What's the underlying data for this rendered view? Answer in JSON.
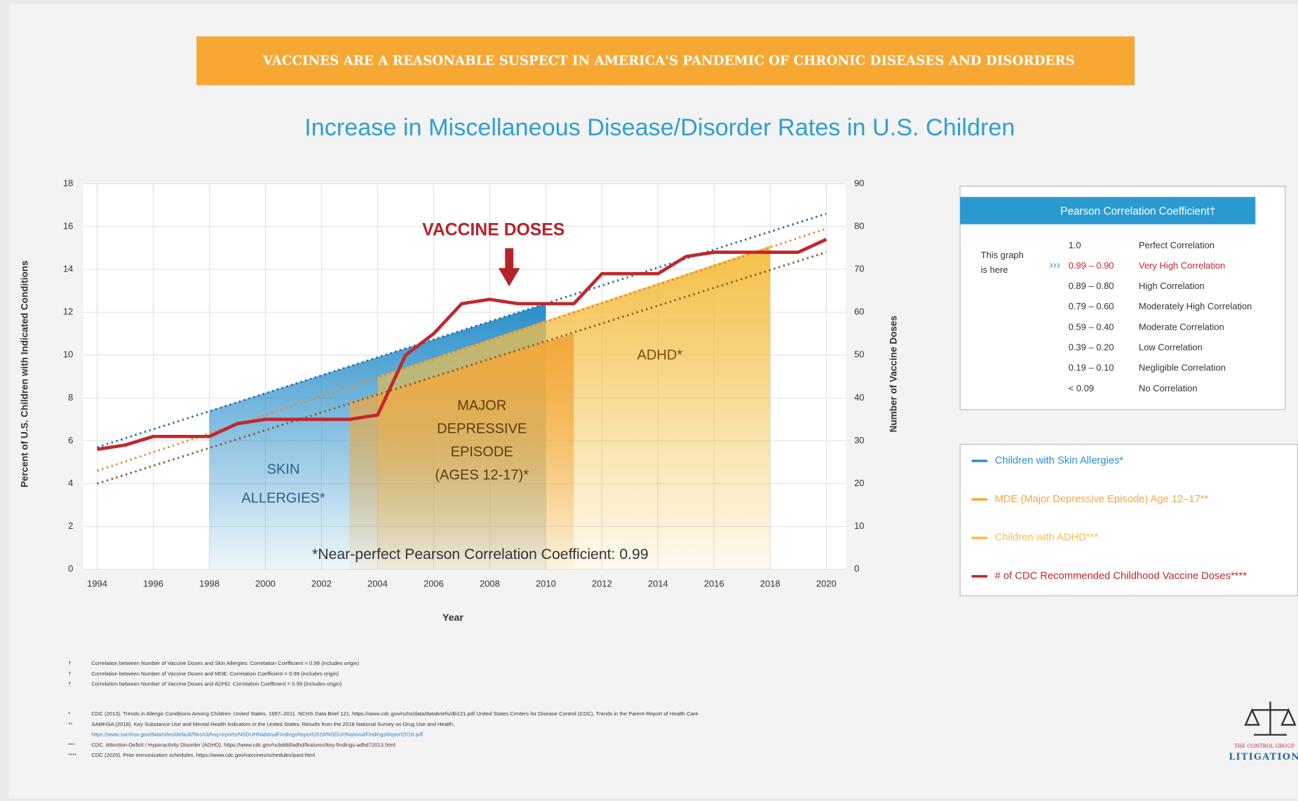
{
  "banner": "VACCINES ARE A REASONABLE SUSPECT IN AMERICA'S PANDEMIC OF CHRONIC DISEASES AND DISORDERS",
  "chart_data": {
    "type": "combo",
    "title": "Increase in Miscellaneous Disease/Disorder Rates in U.S. Children",
    "x_label": "Year",
    "y_label": "Percent of U.S. Children with Indicated Conditions",
    "y2_label": "Number of Vaccine Doses",
    "xlim": [
      1993.5,
      2020.7
    ],
    "xticks": [
      1994,
      1996,
      1998,
      2000,
      2002,
      2004,
      2006,
      2008,
      2010,
      2012,
      2014,
      2016,
      2018,
      2020
    ],
    "ylim": [
      0,
      18
    ],
    "yticks": [
      0,
      2,
      4,
      6,
      8,
      10,
      12,
      14,
      16,
      18
    ],
    "y2lim": [
      0,
      90
    ],
    "y2ticks": [
      0,
      10,
      20,
      30,
      40,
      50,
      60,
      70,
      80,
      90
    ],
    "grid": true,
    "series": [
      {
        "name": "Children with Skin Allergies*",
        "color": "#2a8fc9",
        "x": [
          1998,
          2010
        ],
        "values": [
          7.4,
          12.4
        ]
      },
      {
        "name": "MDE (Major Depressive Episode) Age 12–17**",
        "color": "#f2a83c",
        "x": [
          2003,
          2011
        ],
        "values": [
          7.8,
          11.0
        ]
      },
      {
        "name": "Children with ADHD***",
        "color": "#f3bf45",
        "x": [
          2004,
          2018
        ],
        "values": [
          9.0,
          15.1
        ]
      },
      {
        "name": "# of CDC Recommended Childhood Vaccine Doses****",
        "color": "#c0272d",
        "axis": "y2",
        "x": [
          1994,
          1995,
          1996,
          1997,
          1998,
          1999,
          2000,
          2001,
          2002,
          2003,
          2004,
          2005,
          2006,
          2007,
          2008,
          2009,
          2010,
          2011,
          2012,
          2013,
          2014,
          2015,
          2016,
          2017,
          2018,
          2019,
          2020
        ],
        "values": [
          28,
          29,
          31,
          31,
          31,
          34,
          35,
          35,
          35,
          35,
          36,
          50,
          55,
          62,
          63,
          62,
          62,
          62,
          69,
          69,
          69,
          73,
          74,
          74,
          74,
          74,
          77
        ]
      }
    ],
    "trendlines": [
      {
        "color": "#2b6ca3",
        "x": [
          1994,
          2020
        ],
        "values": [
          5.7,
          16.6
        ]
      },
      {
        "color": "#e8862a",
        "x": [
          1994,
          2020
        ],
        "values": [
          4.6,
          15.9
        ]
      },
      {
        "color": "#8b5a2b",
        "x": [
          1994,
          2020
        ],
        "values": [
          4.0,
          14.8
        ]
      }
    ],
    "area_labels": [
      {
        "lines": [
          "SKIN",
          "ALLERGIES*"
        ]
      },
      {
        "lines": [
          "MAJOR",
          "DEPRESSIVE",
          "EPISODE",
          "(AGES 12-17)*"
        ]
      },
      {
        "lines": [
          "ADHD*"
        ]
      }
    ],
    "vaccine_label": "VACCINE DOSES",
    "note": "*Near-perfect Pearson Correlation Coefficient: 0.99"
  },
  "pearson": {
    "title": "Pearson Correlation Coefficient†",
    "pointer": [
      "This graph",
      "is here"
    ],
    "marker": "›››",
    "highlight_row": 1,
    "rows": [
      [
        "1.0",
        "Perfect Correlation"
      ],
      [
        "0.99 – 0.90",
        "Very High Correlation"
      ],
      [
        "0.89 – 0.80",
        "High Correlation"
      ],
      [
        "0.79 – 0.60",
        "Moderately High Correlation"
      ],
      [
        "0.59 – 0.40",
        "Moderate Correlation"
      ],
      [
        "0.39 – 0.20",
        "Low Correlation"
      ],
      [
        "0.19 – 0.10",
        "Negligible Correlation"
      ],
      [
        "< 0.09",
        "No Correlation"
      ]
    ]
  },
  "footnotes": [
    [
      "†",
      "Correlation between Number of Vaccine Doses and Skin Allergies: Correlation Coefficient = 0.99 (includes origin)"
    ],
    [
      "†",
      "Correlation between Number of Vaccine Doses and MDE: Correlation Coefficient = 0.99 (includes origin)"
    ],
    [
      "†",
      "Correlation between Number of Vaccine Doses and ADHD: Correlation Coefficient = 0.99 (includes origin)"
    ]
  ],
  "sources": [
    {
      "marker": "*",
      "lines": [
        "CDC (2013). Trends in Allergic Conditions Among Children: United States, 1997–2011. NCHS Data Brief 121. https://www.cdc.gov/nchs/data/databriefs/db121.pdf United States Centers for Disease Control (CDC), Trends in the Parent-Report of Health Care"
      ]
    },
    {
      "marker": "**",
      "lines": [
        "SAMHSA (2018). Key Substance Use and Mental Health Indicators in the United States: Results from the 2018 National Survey on Drug Use and Health.",
        "https://www.samhsa.gov/data/sites/default/files/cbhsq-reports/NSDUHNationalFindingsReport2018/NSDUHNationalFindingsReport2018.pdf"
      ]
    },
    {
      "marker": "***",
      "lines": [
        "CDC. Attention-Deficit / Hyperactivity Disorder (ADHD). https://www.cdc.gov/ncbddd/adhd/features/key-findings-adhd72013.html"
      ]
    },
    {
      "marker": "****",
      "lines": [
        "CDC (2020). Prior immunization schedules. https://www.cdc.gov/vaccines/schedules/past.html"
      ]
    }
  ],
  "logo": [
    "THE CONTROL GROUP",
    "LITIGATION"
  ]
}
